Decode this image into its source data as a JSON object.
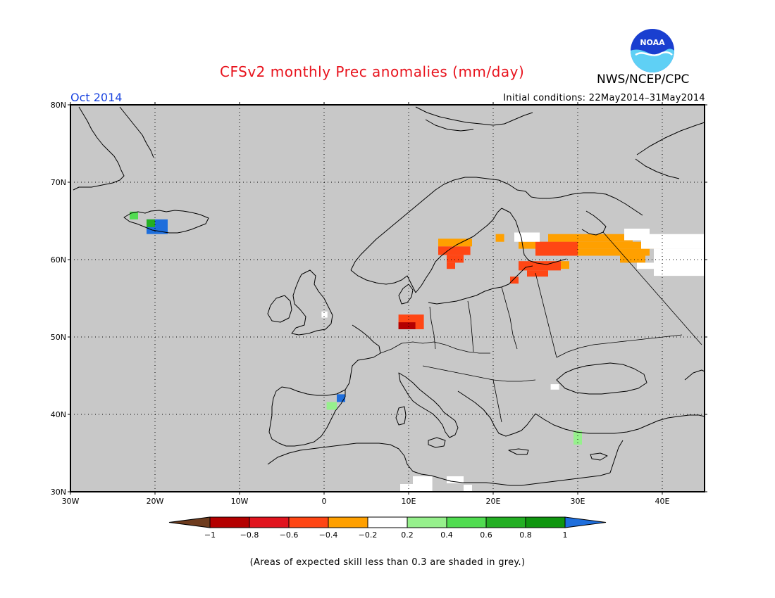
{
  "title": "CFSv2 monthly Prec anomalies (mm/day)",
  "agency": "NWS/NCEP/CPC",
  "logo_text": "NOAA",
  "valid_period": "Oct 2014",
  "initial_conditions": "Initial conditions: 22May2014–31May2014",
  "footnote": "(Areas of expected skill less than 0.3 are shaded in grey.)",
  "map": {
    "lon_range": [
      -30,
      45
    ],
    "lat_range": [
      30,
      80
    ],
    "lat_ticks": [
      "80N",
      "70N",
      "60N",
      "50N",
      "40N",
      "30N"
    ],
    "lon_ticks": [
      "30W",
      "20W",
      "10W",
      "0",
      "10E",
      "20E",
      "30E",
      "40E"
    ],
    "background_color": "#c8c8c8"
  },
  "colorbar": {
    "labels": [
      "−1",
      "−0.8",
      "−0.6",
      "−0.4",
      "−0.2",
      "0.2",
      "0.4",
      "0.6",
      "0.8",
      "1"
    ],
    "colors": [
      "#6e3c1e",
      "#b40000",
      "#e1141e",
      "#ff4614",
      "#ffa000",
      "#ffffff",
      "#96f08c",
      "#50dc50",
      "#23af23",
      "#0f960f",
      "#1e6edc"
    ]
  },
  "anomaly_cells": [
    {
      "lon": [
        -21,
        -18.5
      ],
      "lat": [
        63.3,
        65.2
      ],
      "color": "#1e6edc"
    },
    {
      "lon": [
        -21,
        -20
      ],
      "lat": [
        64.2,
        65.2
      ],
      "color": "#23af23"
    },
    {
      "lon": [
        -23,
        -22
      ],
      "lat": [
        65.2,
        66.2
      ],
      "color": "#50dc50"
    },
    {
      "lon": [
        13.5,
        17.5
      ],
      "lat": [
        61.7,
        62.7
      ],
      "color": "#ffa000"
    },
    {
      "lon": [
        13.5,
        17.3
      ],
      "lat": [
        60.6,
        61.7
      ],
      "color": "#ff4614"
    },
    {
      "lon": [
        14.5,
        16.5
      ],
      "lat": [
        59.6,
        60.6
      ],
      "color": "#ff4614"
    },
    {
      "lon": [
        14.5,
        15.5
      ],
      "lat": [
        58.8,
        59.6
      ],
      "color": "#ff4614"
    },
    {
      "lon": [
        8.8,
        11.8
      ],
      "lat": [
        51.0,
        52.9
      ],
      "color": "#ff4614"
    },
    {
      "lon": [
        8.8,
        10.8
      ],
      "lat": [
        51.0,
        51.9
      ],
      "color": "#b40000"
    },
    {
      "lon": [
        20.3,
        21.3
      ],
      "lat": [
        62.3,
        63.3
      ],
      "color": "#ffa000"
    },
    {
      "lon": [
        26.5,
        36.5
      ],
      "lat": [
        62.3,
        63.3
      ],
      "color": "#ffa000"
    },
    {
      "lon": [
        23.0,
        40.0
      ],
      "lat": [
        61.4,
        62.3
      ],
      "color": "#ffa000"
    },
    {
      "lon": [
        25.0,
        38.5
      ],
      "lat": [
        60.5,
        61.4
      ],
      "color": "#ffa000"
    },
    {
      "lon": [
        35.0,
        38.0
      ],
      "lat": [
        59.6,
        60.5
      ],
      "color": "#ffa000"
    },
    {
      "lon": [
        25.0,
        30.0
      ],
      "lat": [
        60.5,
        62.3
      ],
      "color": "#ff4614"
    },
    {
      "lon": [
        23.0,
        28.0
      ],
      "lat": [
        58.6,
        59.8
      ],
      "color": "#ff4614"
    },
    {
      "lon": [
        28.0,
        29.0
      ],
      "lat": [
        58.8,
        59.8
      ],
      "color": "#ffa000"
    },
    {
      "lon": [
        24.0,
        26.5
      ],
      "lat": [
        57.8,
        58.6
      ],
      "color": "#ff4614"
    },
    {
      "lon": [
        22.0,
        23.0
      ],
      "lat": [
        56.9,
        57.8
      ],
      "color": "#ff4614"
    },
    {
      "lon": [
        1.5,
        2.5
      ],
      "lat": [
        41.6,
        42.6
      ],
      "color": "#1e6edc"
    },
    {
      "lon": [
        0.3,
        1.5
      ],
      "lat": [
        40.6,
        41.6
      ],
      "color": "#96f08c"
    },
    {
      "lon": [
        29.5,
        30.5
      ],
      "lat": [
        36.1,
        37.9
      ],
      "color": "#96f08c"
    },
    {
      "lon": [
        37.5,
        45.0
      ],
      "lat": [
        61.4,
        63.3
      ],
      "color": "#ffffff"
    },
    {
      "lon": [
        39.0,
        45.0
      ],
      "lat": [
        57.9,
        61.4
      ],
      "color": "#ffffff"
    },
    {
      "lon": [
        37.0,
        39.0
      ],
      "lat": [
        58.8,
        59.6
      ],
      "color": "#ffffff"
    },
    {
      "lon": [
        22.5,
        25.5
      ],
      "lat": [
        62.3,
        63.5
      ],
      "color": "#ffffff"
    },
    {
      "lon": [
        35.5,
        38.5
      ],
      "lat": [
        62.5,
        64.0
      ],
      "color": "#ffffff"
    },
    {
      "lon": [
        10.5,
        12.8
      ],
      "lat": [
        30.0,
        32.0
      ],
      "color": "#ffffff"
    },
    {
      "lon": [
        14.5,
        16.5
      ],
      "lat": [
        31.1,
        32.0
      ],
      "color": "#ffffff"
    },
    {
      "lon": [
        9.0,
        10.5
      ],
      "lat": [
        30.0,
        31.0
      ],
      "color": "#ffffff"
    },
    {
      "lon": [
        16.5,
        17.5
      ],
      "lat": [
        30.0,
        30.9
      ],
      "color": "#ffffff"
    },
    {
      "lon": [
        -0.3,
        0.4
      ],
      "lat": [
        52.5,
        53.3
      ],
      "color": "#ffffff"
    },
    {
      "lon": [
        26.8,
        27.8
      ],
      "lat": [
        43.2,
        43.9
      ],
      "color": "#ffffff"
    }
  ]
}
